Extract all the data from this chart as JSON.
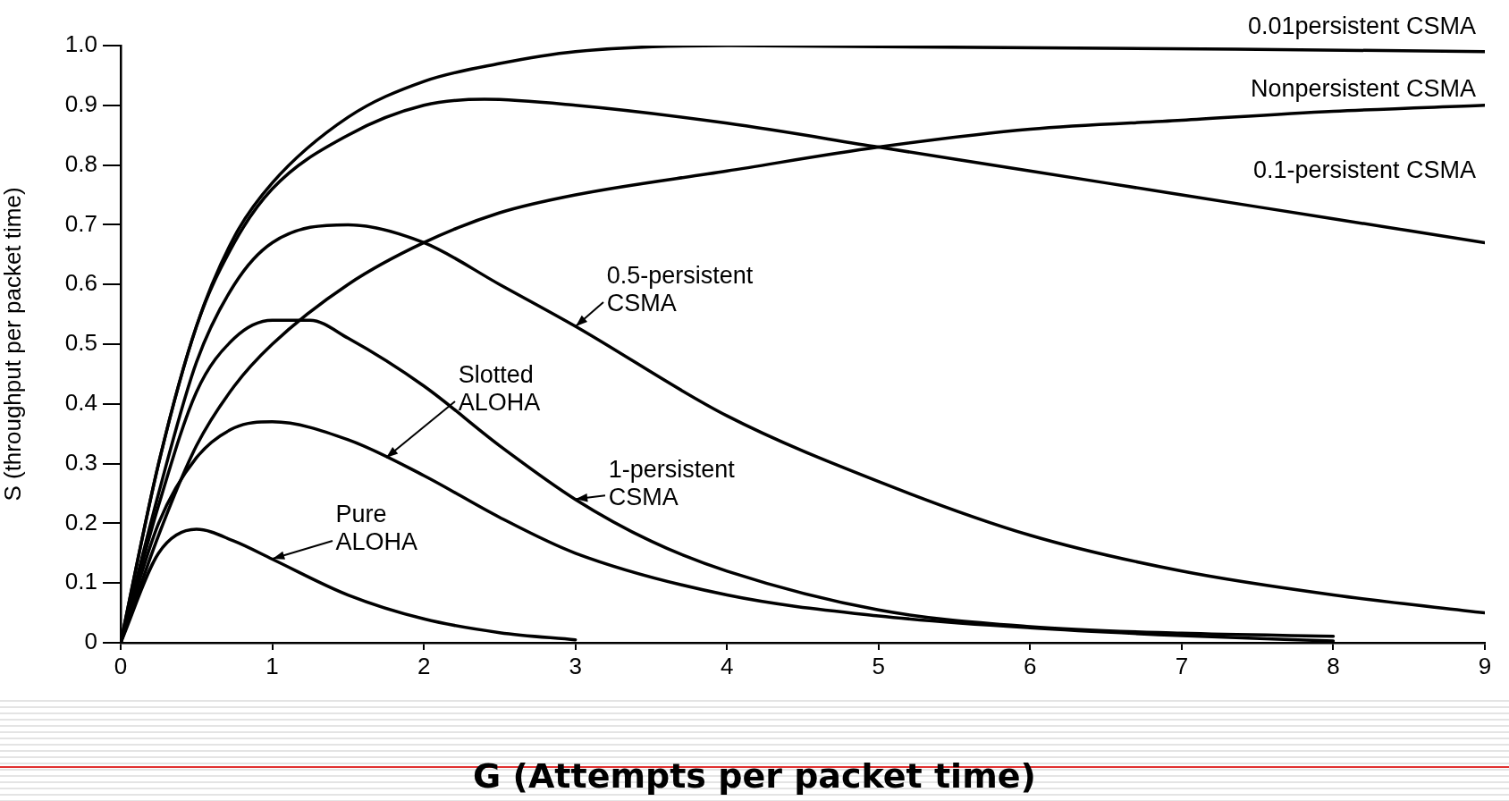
{
  "chart_data": {
    "type": "line",
    "xlabel": "G (Attempts per packet time)",
    "ylabel": "S (throughput per packet time)",
    "xlim": [
      0,
      9
    ],
    "xticks": [
      0,
      1,
      2,
      3,
      4,
      5,
      6,
      7,
      8,
      9
    ],
    "ylim": [
      0,
      1
    ],
    "yticks": [
      0,
      0.1,
      0.2,
      0.3,
      0.4,
      0.5,
      0.6,
      0.7,
      0.8,
      0.9,
      {
        "value": 1,
        "label": "1.0"
      }
    ],
    "grid": false,
    "legend": false,
    "marker": "none",
    "line_style": "solid",
    "series": [
      {
        "color": "#000000",
        "x": [
          0,
          0.25,
          0.5,
          0.75,
          1,
          1.5,
          2,
          2.5,
          3
        ],
        "values": [
          0,
          0.15,
          0.19,
          0.17,
          0.14,
          0.08,
          0.04,
          0.017,
          0.005
        ]
      },
      {
        "color": "#000000",
        "x": [
          0,
          0.25,
          0.5,
          0.75,
          1,
          1.5,
          2,
          2.5,
          3,
          4,
          5,
          6,
          7,
          8
        ],
        "values": [
          0,
          0.2,
          0.31,
          0.36,
          0.37,
          0.34,
          0.28,
          0.21,
          0.15,
          0.08,
          0.045,
          0.025,
          0.012,
          0.003
        ]
      },
      {
        "color": "#000000",
        "x": [
          0,
          0.25,
          0.5,
          0.75,
          1,
          1.25,
          1.5,
          2,
          2.5,
          3,
          3.5,
          4,
          5,
          6,
          7,
          8
        ],
        "values": [
          0,
          0.23,
          0.42,
          0.51,
          0.54,
          0.54,
          0.51,
          0.43,
          0.33,
          0.24,
          0.17,
          0.12,
          0.055,
          0.027,
          0.016,
          0.011
        ]
      },
      {
        "color": "#000000",
        "x": [
          0,
          0.25,
          0.5,
          0.75,
          1,
          1.5,
          2,
          2.5,
          3,
          4,
          5,
          6,
          7,
          8,
          9
        ],
        "values": [
          0,
          0.25,
          0.47,
          0.6,
          0.67,
          0.7,
          0.67,
          0.6,
          0.53,
          0.38,
          0.27,
          0.18,
          0.12,
          0.08,
          0.05
        ]
      },
      {
        "color": "#000000",
        "x": [
          0,
          0.25,
          0.5,
          0.75,
          1,
          1.5,
          2,
          2.5,
          3,
          4,
          5,
          6,
          7,
          8,
          9
        ],
        "values": [
          0,
          0.18,
          0.33,
          0.43,
          0.5,
          0.6,
          0.67,
          0.72,
          0.75,
          0.79,
          0.83,
          0.86,
          0.875,
          0.89,
          0.9
        ]
      },
      {
        "color": "#000000",
        "x": [
          0,
          0.25,
          0.5,
          0.75,
          1,
          1.5,
          2,
          2.4,
          3,
          4,
          5,
          6,
          7,
          8,
          9
        ],
        "values": [
          0,
          0.3,
          0.53,
          0.67,
          0.76,
          0.85,
          0.9,
          0.91,
          0.9,
          0.87,
          0.83,
          0.79,
          0.75,
          0.71,
          0.67
        ]
      },
      {
        "color": "#000000",
        "x": [
          0,
          0.25,
          0.5,
          0.75,
          1,
          1.5,
          2,
          2.5,
          3,
          4,
          9
        ],
        "values": [
          0,
          0.3,
          0.53,
          0.68,
          0.77,
          0.88,
          0.94,
          0.97,
          0.99,
          1,
          0.99
        ]
      }
    ],
    "annotations": [
      {
        "text": "Pure\nALOHA",
        "x": 1,
        "y": 0.14
      },
      {
        "text": "Slotted\nALOHA",
        "x": 1.75,
        "y": 0.31
      },
      {
        "text": "1-persistent\nCSMA",
        "x": 3,
        "y": 0.24
      },
      {
        "text": "0.5-persistent\nCSMA",
        "x": 3,
        "y": 0.53
      },
      {
        "text": "0.1-persistent CSMA",
        "x": 9,
        "y": 0.67
      },
      {
        "text": "Nonpersistent CSMA",
        "x": 9,
        "y": 0.9
      },
      {
        "text": "0.01persistent CSMA",
        "x": 9,
        "y": 0.99
      }
    ]
  }
}
